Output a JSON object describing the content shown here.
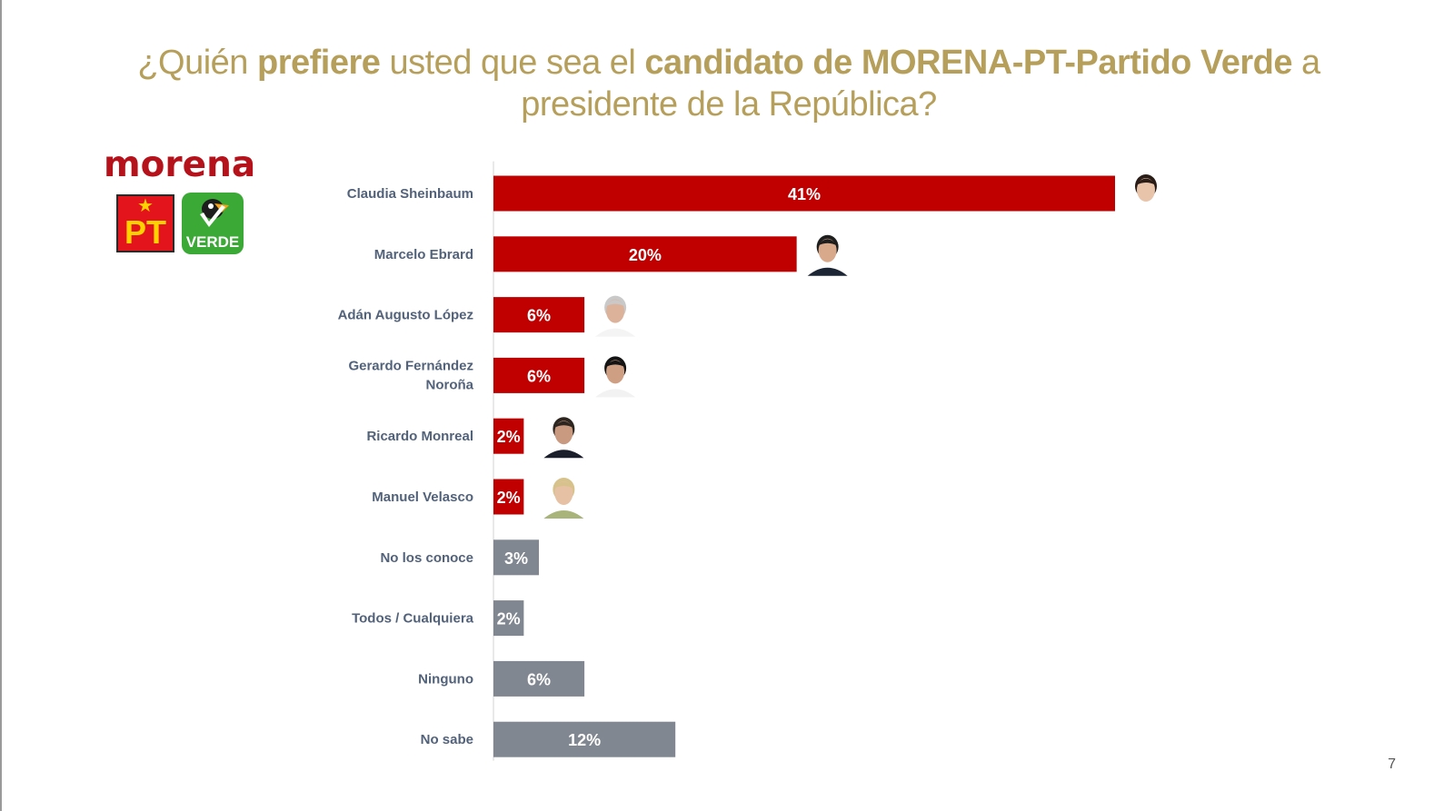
{
  "title": {
    "part1": "¿Quién ",
    "bold1": "prefiere",
    "part2": " usted que sea el ",
    "bold2": "candidato de MORENA-PT-Partido Verde",
    "part3": " a presidente de la República?"
  },
  "logos": {
    "morena": "morena",
    "pt": "PT",
    "verde": "VERDE"
  },
  "colors": {
    "title": "#b69f5a",
    "candidate_bar": "#c00000",
    "other_bar": "#808790",
    "axis": "#e2e2e2",
    "category_label": "#52627a"
  },
  "chart_data": {
    "type": "bar",
    "orientation": "horizontal",
    "categories": [
      "Claudia Sheinbaum",
      "Marcelo Ebrard",
      "Adán Augusto López",
      "Gerardo Fernández Noroña",
      "Ricardo Monreal",
      "Manuel Velasco",
      "No los conoce",
      "Todos / Cualquiera",
      "Ninguno",
      "No sabe"
    ],
    "values": [
      41,
      20,
      6,
      6,
      2,
      2,
      3,
      2,
      6,
      12
    ],
    "value_labels": [
      "41%",
      "20%",
      "6%",
      "6%",
      "2%",
      "2%",
      "3%",
      "2%",
      "6%",
      "12%"
    ],
    "unit": "%",
    "bar_color_groups": [
      "candidate",
      "candidate",
      "candidate",
      "candidate",
      "candidate",
      "candidate",
      "other",
      "other",
      "other",
      "other"
    ],
    "has_photo": [
      true,
      true,
      true,
      true,
      true,
      true,
      false,
      false,
      false,
      false
    ],
    "xlim": [
      0,
      41
    ],
    "grid": false,
    "legend": "none"
  },
  "page_number": "7"
}
